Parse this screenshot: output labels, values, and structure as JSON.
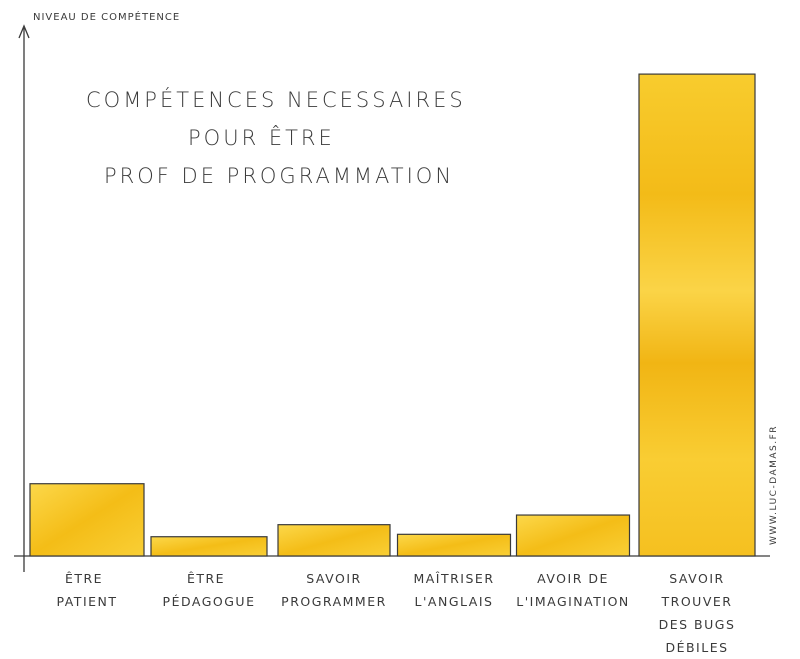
{
  "chart_data": {
    "type": "bar",
    "title_lines": [
      "COMPÉTENCES NECESSAIRES",
      "POUR ÊTRE",
      "PROF DE PROGRAMMATION"
    ],
    "ylabel": "NIVEAU DE COMPÉTENCE",
    "xlabel": "",
    "categories": [
      [
        "ÊTRE",
        "PATIENT"
      ],
      [
        "ÊTRE",
        "PÉDAGOGUE"
      ],
      [
        "SAVOIR",
        "PROGRAMMER"
      ],
      [
        "MAÎTRISER",
        "L'ANGLAIS"
      ],
      [
        "AVOIR DE",
        "L'IMAGINATION"
      ],
      [
        "SAVOIR",
        "TROUVER",
        "DES BUGS",
        "DÉBILES"
      ]
    ],
    "values": [
      15,
      4,
      6.5,
      4.5,
      8.5,
      100
    ],
    "ylim": [
      0,
      105
    ],
    "grid": false,
    "bar_color": "#f5c21b",
    "bar_color_light": "#fbd94f",
    "ink_color": "#3a3a3a",
    "credit": "WWW.LUC-DAMAS.FR"
  }
}
